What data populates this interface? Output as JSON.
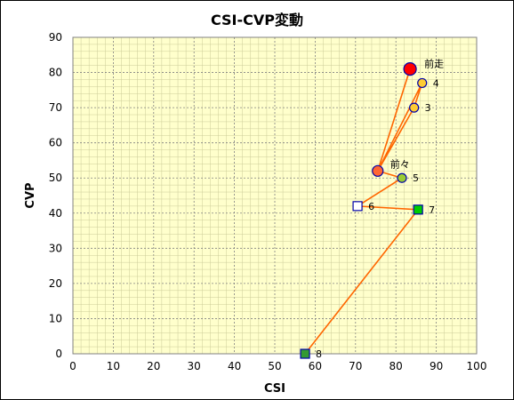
{
  "chart_data": {
    "type": "scatter",
    "title": "CSI-CVP変動",
    "xlabel": "CSI",
    "ylabel": "CVP",
    "xlim": [
      0,
      100
    ],
    "ylim": [
      0,
      90
    ],
    "x_ticks": [
      0,
      10,
      20,
      30,
      40,
      50,
      60,
      70,
      80,
      90,
      100
    ],
    "y_ticks": [
      0,
      10,
      20,
      30,
      40,
      50,
      60,
      70,
      80,
      90
    ],
    "grid": true,
    "plot_background": "#ffffcc",
    "line_color": "#ff6600",
    "path_order": [
      "前走",
      "前々",
      "4",
      "3",
      "前々",
      "5",
      "6",
      "7",
      "8"
    ],
    "points": [
      {
        "label": "前走",
        "x": 83.5,
        "y": 81,
        "marker": "circle-large",
        "fill": "#ff0000"
      },
      {
        "label": "4",
        "x": 86.5,
        "y": 77,
        "marker": "circle",
        "fill": "#ffcc33"
      },
      {
        "label": "3",
        "x": 84.5,
        "y": 70,
        "marker": "circle",
        "fill": "#ffcc33"
      },
      {
        "label": "前々",
        "x": 75.5,
        "y": 52,
        "marker": "circle-medium",
        "fill": "#ff6633"
      },
      {
        "label": "5",
        "x": 81.5,
        "y": 50,
        "marker": "circle",
        "fill": "#99cc33"
      },
      {
        "label": "6",
        "x": 70.5,
        "y": 42,
        "marker": "square",
        "fill": "#ffffff"
      },
      {
        "label": "7",
        "x": 85.5,
        "y": 41,
        "marker": "square",
        "fill": "#00cc00"
      },
      {
        "label": "8",
        "x": 57.5,
        "y": 0,
        "marker": "square",
        "fill": "#339933"
      }
    ]
  }
}
